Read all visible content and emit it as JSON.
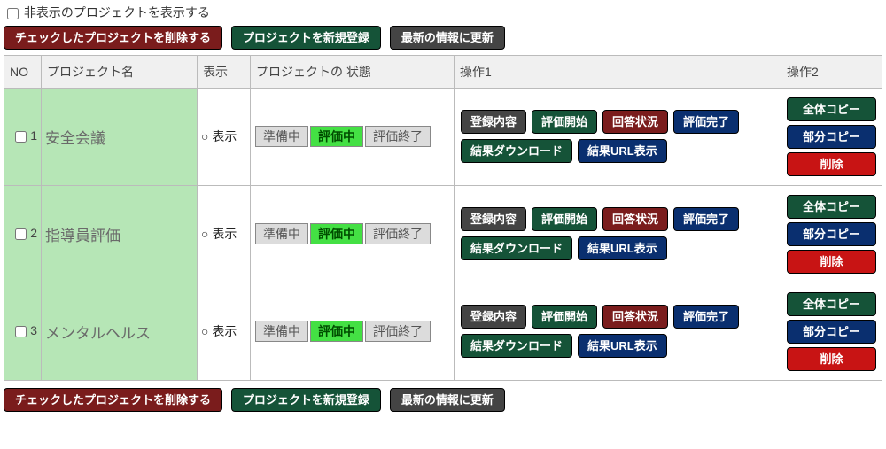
{
  "colors": {
    "dark_red": "#7a1c1c",
    "dark_green": "#155338",
    "dark_gray": "#444444",
    "dark_blue": "#0a2f6f",
    "bright_red": "#c81414",
    "state_inactive_bg": "#dcdcdc",
    "state_active_bg": "#44e044",
    "row_highlight": "#b6e6b6"
  },
  "top_checkbox_label": "非表示のプロジェクトを表示する",
  "action_bar": {
    "delete_checked": "チェックしたプロジェクトを削除する",
    "new_project": "プロジェクトを新規登録",
    "refresh": "最新の情報に更新"
  },
  "columns": {
    "no": "NO",
    "name": "プロジェクト名",
    "display": "表示",
    "state": "プロジェクトの 状態",
    "ops1": "操作1",
    "ops2": "操作2"
  },
  "state_labels": {
    "preparing": "準備中",
    "evaluating": "評価中",
    "finished": "評価終了"
  },
  "ops1_labels": {
    "registered_content": "登録内容",
    "start_eval": "評価開始",
    "answer_status": "回答状況",
    "eval_done": "評価完了",
    "download_result": "結果ダウンロード",
    "show_result_url": "結果URL表示"
  },
  "ops2_labels": {
    "full_copy": "全体コピー",
    "partial_copy": "部分コピー",
    "delete": "削除"
  },
  "display_text": "○ 表示",
  "rows": [
    {
      "no": "1",
      "name": "安全会議",
      "active_state": "evaluating"
    },
    {
      "no": "2",
      "name": "指導員評価",
      "active_state": "evaluating"
    },
    {
      "no": "3",
      "name": "メンタルヘルス",
      "active_state": "evaluating"
    }
  ]
}
